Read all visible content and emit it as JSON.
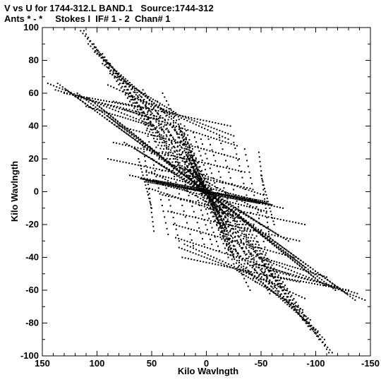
{
  "title_line1": "V vs U for 1744-312.L BAND.1   Source:1744-312",
  "title_line2": "Ants * - *     Stokes I  IF# 1 - 2  Chan# 1",
  "chart_data": {
    "type": "scatter",
    "title": "V vs U for 1744-312.L BAND.1   Source:1744-312",
    "subtitle": "Ants * - *     Stokes I  IF# 1 - 2  Chan# 1",
    "xlabel": "Kilo Wavlngth",
    "ylabel": "Kilo Wavlngth",
    "xlim": [
      150,
      -150
    ],
    "ylim": [
      -100,
      100
    ],
    "xticks": [
      150,
      100,
      50,
      0,
      -50,
      -100,
      -150
    ],
    "yticks": [
      100,
      80,
      60,
      40,
      20,
      0,
      -20,
      -40,
      -60,
      -80,
      -100
    ],
    "xtick_labels": [
      "150",
      "100",
      "50",
      "0",
      "-50",
      "-100",
      "-150"
    ],
    "ytick_labels": [
      "100",
      "80",
      "60",
      "40",
      "20",
      "0",
      "-20",
      "-40",
      "-60",
      "-80",
      "-100"
    ],
    "grid": false,
    "legend": false,
    "marker_color": "#000000",
    "tracks": [
      {
        "u0": 112,
        "v0": 98,
        "u1": 30,
        "v1": 14,
        "n": 42
      },
      {
        "u0": 103,
        "v0": 90,
        "u1": 25,
        "v1": 12,
        "n": 40
      },
      {
        "u0": 95,
        "v0": 84,
        "u1": 20,
        "v1": 10,
        "n": 38
      },
      {
        "u0": 88,
        "v0": 78,
        "u1": 16,
        "v1": 8,
        "n": 36
      },
      {
        "u0": 80,
        "v0": 70,
        "u1": 12,
        "v1": 6,
        "n": 34
      },
      {
        "u0": 136,
        "v0": 66,
        "u1": 2,
        "v1": 1,
        "n": 60
      },
      {
        "u0": 128,
        "v0": 62,
        "u1": 8,
        "v1": 4,
        "n": 56
      },
      {
        "u0": 118,
        "v0": 60,
        "u1": 12,
        "v1": 6,
        "n": 52
      },
      {
        "u0": 108,
        "v0": 57,
        "u1": 10,
        "v1": 5,
        "n": 48
      },
      {
        "u0": 98,
        "v0": 52,
        "u1": 8,
        "v1": 4,
        "n": 44
      },
      {
        "u0": 90,
        "v0": 46,
        "u1": 5,
        "v1": 3,
        "n": 40
      },
      {
        "u0": 75,
        "v0": 30,
        "u1": -5,
        "v1": -2,
        "n": 36
      },
      {
        "u0": 65,
        "v0": 26,
        "u1": -12,
        "v1": -6,
        "n": 34
      },
      {
        "u0": 55,
        "v0": 22,
        "u1": -18,
        "v1": -10,
        "n": 32
      },
      {
        "u0": 50,
        "v0": 12,
        "u1": -22,
        "v1": -14,
        "n": 30
      },
      {
        "u0": 52,
        "v0": 2,
        "u1": -30,
        "v1": -16,
        "n": 32
      },
      {
        "u0": 58,
        "v0": 62,
        "u1": 0,
        "v1": 0,
        "n": 30
      },
      {
        "u0": 45,
        "v0": 55,
        "u1": -10,
        "v1": -5,
        "n": 28
      },
      {
        "u0": 30,
        "v0": 40,
        "u1": -5,
        "v1": -8,
        "n": 22
      },
      {
        "u0": 25,
        "v0": 44,
        "u1": -15,
        "v1": -25,
        "n": 26
      },
      {
        "u0": 20,
        "v0": 40,
        "u1": -20,
        "v1": -35,
        "n": 28
      },
      {
        "u0": 12,
        "v0": 36,
        "u1": -25,
        "v1": -40,
        "n": 28
      },
      {
        "u0": 5,
        "v0": 32,
        "u1": -30,
        "v1": -42,
        "n": 26
      },
      {
        "u0": -2,
        "v0": 32,
        "u1": -38,
        "v1": -44,
        "n": 24
      },
      {
        "u0": -12,
        "v0": 33,
        "u1": -45,
        "v1": -48,
        "n": 24
      },
      {
        "u0": -25,
        "v0": 30,
        "u1": -55,
        "v1": -52,
        "n": 24
      },
      {
        "u0": -35,
        "v0": 26,
        "u1": -60,
        "v1": -55,
        "n": 24
      },
      {
        "u0": -48,
        "v0": 24,
        "u1": -58,
        "v1": -30,
        "n": 20
      },
      {
        "u0": -50,
        "v0": 10,
        "u1": -62,
        "v1": -20,
        "n": 16
      },
      {
        "u0": 20,
        "v0": 20,
        "u1": -30,
        "v1": -20,
        "n": 24
      },
      {
        "u0": 45,
        "v0": 5,
        "u1": -55,
        "v1": -12,
        "n": 40
      },
      {
        "u0": 60,
        "v0": 8,
        "u1": -70,
        "v1": -10,
        "n": 50
      },
      {
        "u0": 40,
        "v0": -2,
        "u1": -90,
        "v1": -20,
        "n": 48
      },
      {
        "u0": 35,
        "v0": -12,
        "u1": -85,
        "v1": -30,
        "n": 44
      },
      {
        "u0": 30,
        "v0": -20,
        "u1": -80,
        "v1": -40,
        "n": 42
      },
      {
        "u0": 28,
        "v0": -28,
        "u1": -75,
        "v1": -50,
        "n": 40
      },
      {
        "u0": 25,
        "v0": -34,
        "u1": -70,
        "v1": -58,
        "n": 38
      },
      {
        "u0": 22,
        "v0": -40,
        "u1": -85,
        "v1": -55,
        "n": 40
      },
      {
        "u0": 20,
        "v0": -32,
        "u1": -90,
        "v1": -65,
        "n": 42
      },
      {
        "u0": 30,
        "v0": 32,
        "u1": -40,
        "v1": -60,
        "n": 40
      },
      {
        "u0": 8,
        "v0": 10,
        "u1": -60,
        "v1": -58,
        "n": 30
      },
      {
        "u0": 0,
        "v0": 0,
        "u1": -70,
        "v1": -65,
        "n": 30
      },
      {
        "u0": -5,
        "v0": -5,
        "u1": -75,
        "v1": -62,
        "n": 30
      },
      {
        "u0": -40,
        "v0": -38,
        "u1": -145,
        "v1": -66,
        "n": 40
      },
      {
        "u0": -45,
        "v0": -44,
        "u1": -138,
        "v1": -62,
        "n": 36
      },
      {
        "u0": -50,
        "v0": -50,
        "u1": -130,
        "v1": -60,
        "n": 32
      },
      {
        "u0": -40,
        "v0": -45,
        "u1": -120,
        "v1": -58,
        "n": 30
      },
      {
        "u0": -50,
        "v0": -40,
        "u1": -110,
        "v1": -52,
        "n": 26
      },
      {
        "u0": -20,
        "v0": -25,
        "u1": -115,
        "v1": -98,
        "n": 46
      },
      {
        "u0": -25,
        "v0": -35,
        "u1": -108,
        "v1": -90,
        "n": 40
      },
      {
        "u0": -28,
        "v0": -42,
        "u1": -102,
        "v1": -85,
        "n": 38
      },
      {
        "u0": -30,
        "v0": -45,
        "u1": -95,
        "v1": -78,
        "n": 34
      },
      {
        "u0": -28,
        "v0": -48,
        "u1": -88,
        "v1": -72,
        "n": 30
      },
      {
        "u0": 55,
        "v0": 6,
        "u1": -15,
        "v1": -2,
        "n": 40
      },
      {
        "u0": 48,
        "v0": 7,
        "u1": -2,
        "v1": 1,
        "n": 34
      },
      {
        "u0": 5,
        "v0": 1,
        "u1": -60,
        "v1": -8,
        "n": 46
      },
      {
        "u0": 0,
        "v0": 0,
        "u1": -55,
        "v1": -7,
        "n": 40
      },
      {
        "u0": 2,
        "v0": 3,
        "u1": 25,
        "v1": 40,
        "n": 24
      },
      {
        "u0": 0,
        "v0": 2,
        "u1": 20,
        "v1": 15,
        "n": 20
      },
      {
        "u0": -3,
        "v0": -2,
        "u1": -20,
        "v1": -25,
        "n": 20
      },
      {
        "u0": -2,
        "v0": -4,
        "u1": -14,
        "v1": -22,
        "n": 18
      },
      {
        "u0": 18,
        "v0": 22,
        "u1": 3,
        "v1": 3,
        "n": 18
      },
      {
        "u0": -5,
        "v0": -5,
        "u1": -25,
        "v1": -38,
        "n": 20
      }
    ]
  }
}
